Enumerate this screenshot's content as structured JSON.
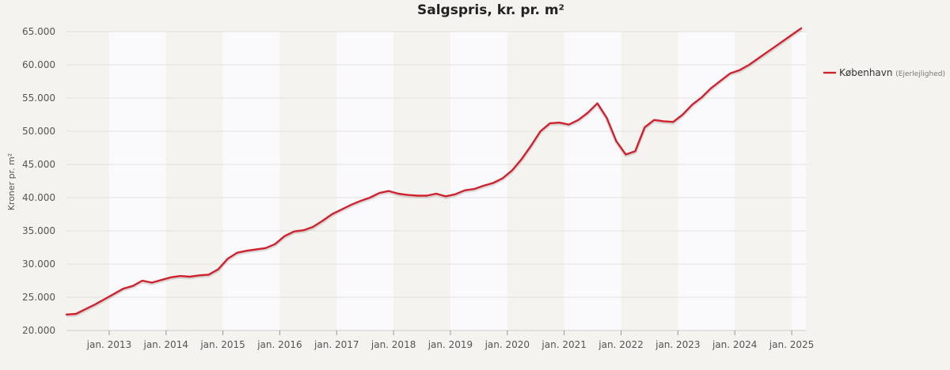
{
  "chart_data": {
    "type": "line",
    "title": "Salgspris, kr. pr. m²",
    "ylabel": "Kroner pr. m²",
    "xlabel": "",
    "ylim": [
      20000,
      65000
    ],
    "xlim": [
      "2012-04",
      "2025-04"
    ],
    "y_ticks": [
      "20.000",
      "25.000",
      "30.000",
      "35.000",
      "40.000",
      "45.000",
      "50.000",
      "55.000",
      "60.000",
      "65.000"
    ],
    "y_tick_values": [
      20000,
      25000,
      30000,
      35000,
      40000,
      45000,
      50000,
      55000,
      60000,
      65000
    ],
    "x_ticks": [
      "jan. 2013",
      "jan. 2014",
      "jan. 2015",
      "jan. 2016",
      "jan. 2017",
      "jan. 2018",
      "jan. 2019",
      "jan. 2020",
      "jan. 2021",
      "jan. 2022",
      "jan. 2023",
      "jan. 2024",
      "jan. 2025"
    ],
    "x_tick_values": [
      "2013-01",
      "2014-01",
      "2015-01",
      "2016-01",
      "2017-01",
      "2018-01",
      "2019-01",
      "2020-01",
      "2021-01",
      "2022-01",
      "2023-01",
      "2024-01",
      "2025-01"
    ],
    "grid": true,
    "legend_position": "right",
    "series": [
      {
        "name": "København",
        "sub": "(Ejerlejlighed)",
        "color": "#d0212e",
        "x": [
          "2012-04",
          "2012-06",
          "2012-08",
          "2012-10",
          "2012-12",
          "2013-02",
          "2013-04",
          "2013-06",
          "2013-08",
          "2013-10",
          "2013-12",
          "2014-02",
          "2014-04",
          "2014-06",
          "2014-08",
          "2014-10",
          "2014-12",
          "2015-02",
          "2015-04",
          "2015-06",
          "2015-08",
          "2015-10",
          "2015-12",
          "2016-02",
          "2016-04",
          "2016-06",
          "2016-08",
          "2016-10",
          "2016-12",
          "2017-02",
          "2017-04",
          "2017-06",
          "2017-08",
          "2017-10",
          "2017-12",
          "2018-02",
          "2018-04",
          "2018-06",
          "2018-08",
          "2018-10",
          "2018-12",
          "2019-02",
          "2019-04",
          "2019-06",
          "2019-08",
          "2019-10",
          "2019-12",
          "2020-02",
          "2020-04",
          "2020-06",
          "2020-08",
          "2020-10",
          "2020-12",
          "2021-02",
          "2021-04",
          "2021-06",
          "2021-08",
          "2021-10",
          "2021-12",
          "2022-02",
          "2022-04",
          "2022-05",
          "2022-06",
          "2022-08",
          "2022-10",
          "2022-12",
          "2023-02",
          "2023-04",
          "2023-06",
          "2023-08",
          "2023-10",
          "2023-12",
          "2024-02",
          "2024-04",
          "2024-06",
          "2024-08",
          "2024-10",
          "2024-12",
          "2025-02",
          "2025-03"
        ],
        "values": [
          22400,
          22500,
          23200,
          23900,
          24700,
          25500,
          26300,
          26700,
          27500,
          27200,
          27600,
          28000,
          28200,
          28100,
          28300,
          28400,
          29200,
          30800,
          31700,
          32000,
          32200,
          32400,
          33000,
          34200,
          34900,
          35100,
          35600,
          36500,
          37500,
          38200,
          38900,
          39500,
          40000,
          40700,
          41000,
          40600,
          40400,
          40300,
          40300,
          40600,
          40200,
          40500,
          41100,
          41300,
          41800,
          42200,
          42900,
          44100,
          45800,
          47800,
          50000,
          51200,
          51300,
          51000,
          51700,
          52800,
          54200,
          52000,
          48500,
          46500,
          47000,
          48800,
          50600,
          51700,
          51500,
          51400,
          52500,
          54000,
          55100,
          56500,
          57600,
          58700,
          59200,
          60000,
          61000,
          62000,
          63000,
          64000,
          65000,
          65500
        ],
        "values_note": ""
      }
    ]
  }
}
